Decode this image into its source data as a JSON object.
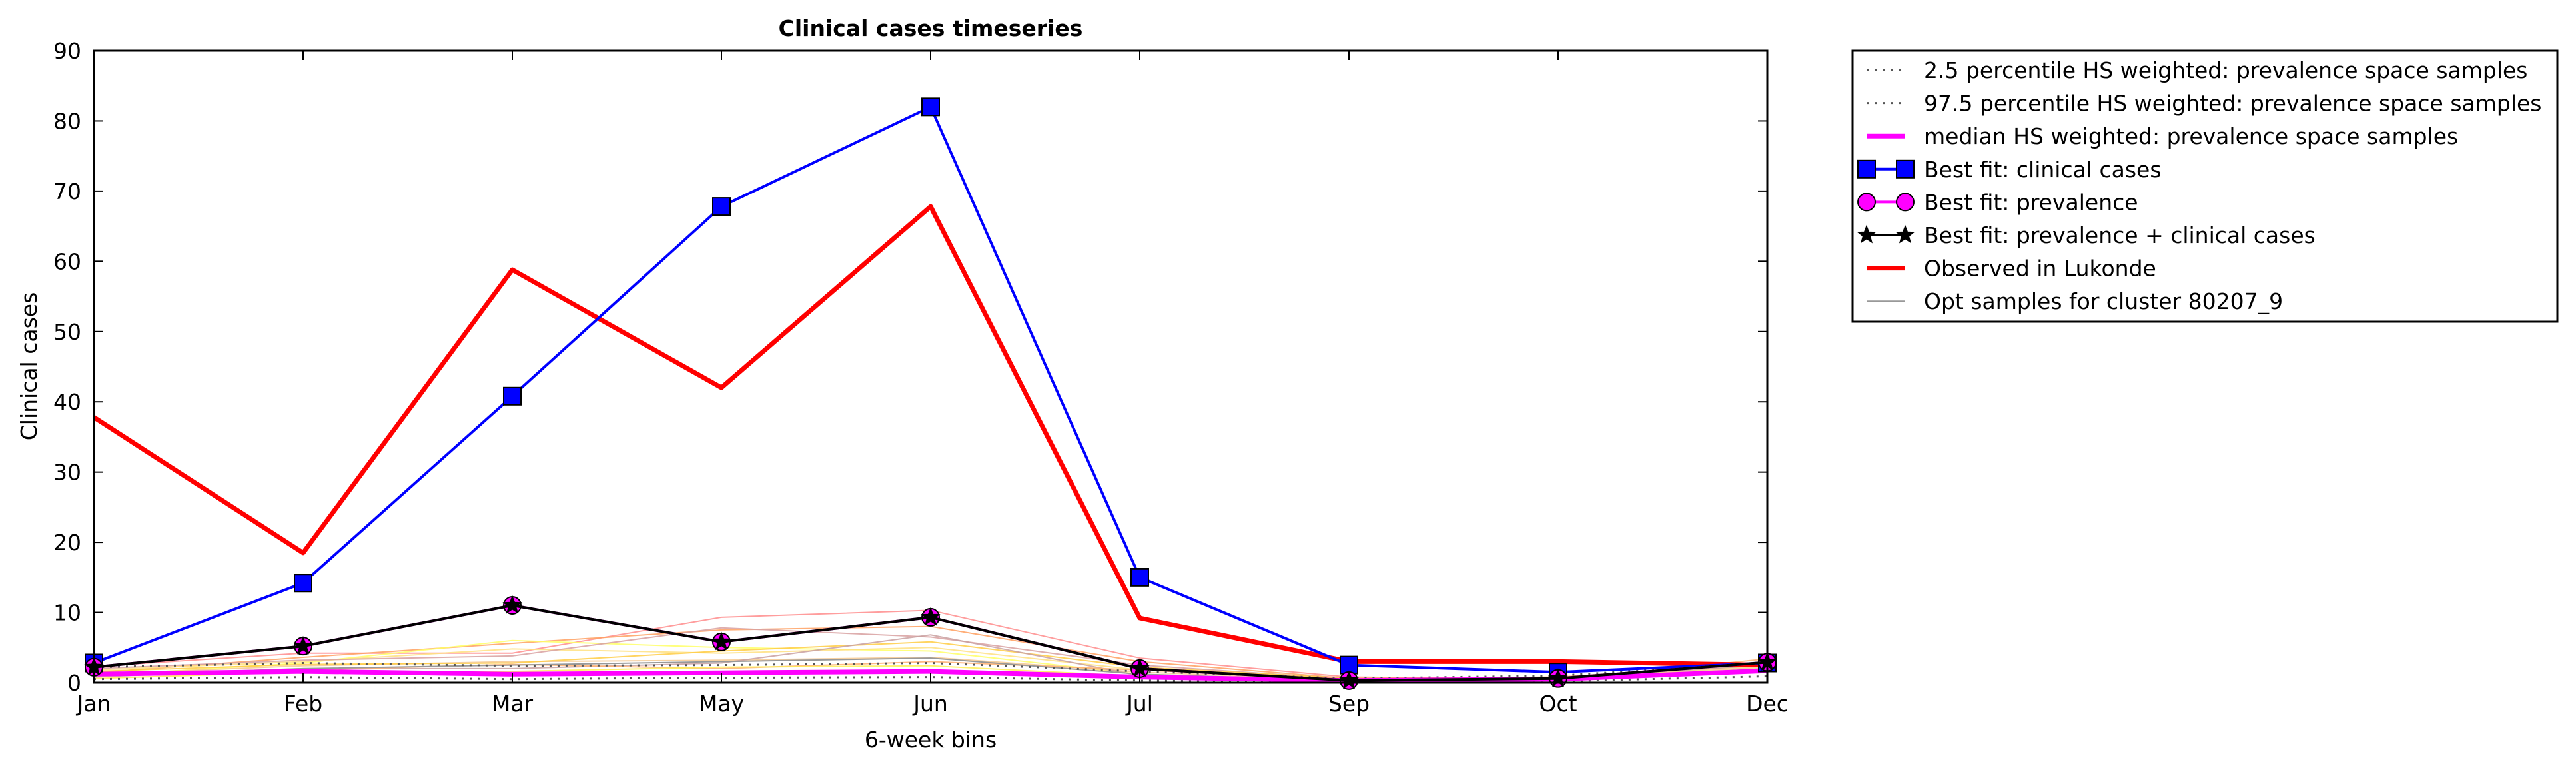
{
  "chart_data": {
    "type": "line",
    "title": "Clinical cases timeseries",
    "xlabel": "6-week bins",
    "ylabel": "Clinical cases",
    "categories": [
      "Jan",
      "Feb",
      "Mar",
      "May",
      "Jun",
      "Jul",
      "Sep",
      "Oct",
      "Dec"
    ],
    "ylim": [
      0,
      90
    ],
    "yticks": [
      0,
      10,
      20,
      30,
      40,
      50,
      60,
      70,
      80,
      90
    ],
    "grid": false,
    "legend_placement": "outside-top-right",
    "series": [
      {
        "name": "2.5 percentile HS weighted: prevalence space samples",
        "color": "#555555",
        "style": "dotted",
        "marker": "none",
        "values": [
          0.5,
          0.8,
          0.5,
          0.7,
          0.8,
          0.3,
          0.1,
          0.2,
          0.9
        ]
      },
      {
        "name": "97.5 percentile HS weighted: prevalence space samples",
        "color": "#555555",
        "style": "dotted",
        "marker": "none",
        "values": [
          2.2,
          2.8,
          2.4,
          2.5,
          2.8,
          1.6,
          0.6,
          1.0,
          2.8
        ]
      },
      {
        "name": "median HS weighted: prevalence space samples",
        "color": "#ff00ff",
        "style": "solid-thick",
        "marker": "none",
        "values": [
          1.2,
          1.6,
          1.2,
          1.4,
          1.6,
          0.8,
          0.3,
          0.5,
          1.7
        ]
      },
      {
        "name": "Best fit: clinical cases",
        "color": "#0000ff",
        "style": "solid",
        "marker": "square",
        "values": [
          2.8,
          14.2,
          40.8,
          67.8,
          82.0,
          15.0,
          2.5,
          1.5,
          2.8
        ]
      },
      {
        "name": "Best fit: prevalence",
        "color": "#ff00ff",
        "style": "solid",
        "marker": "circle",
        "values": [
          2.2,
          5.2,
          11.0,
          5.8,
          9.3,
          2.0,
          0.3,
          0.6,
          2.9
        ]
      },
      {
        "name": "Best fit: prevalence + clinical cases",
        "color": "#000000",
        "style": "solid",
        "marker": "star",
        "values": [
          2.2,
          5.2,
          11.0,
          5.8,
          9.3,
          2.0,
          0.3,
          0.6,
          2.9
        ]
      },
      {
        "name": "Observed in Lukonde",
        "color": "#ff0000",
        "style": "solid-thick",
        "marker": "none",
        "values": [
          37.8,
          18.5,
          58.8,
          42.0,
          67.8,
          9.2,
          3.0,
          3.0,
          2.5
        ]
      },
      {
        "name": "Opt samples for cluster 80207_9",
        "color": "#999999",
        "style": "thin",
        "marker": "none",
        "values": [
          1.0,
          2.0,
          2.5,
          3.0,
          3.5,
          1.2,
          0.3,
          0.4,
          2.0
        ]
      }
    ],
    "opt_sample_lines": [
      {
        "color": "#ff8c8c",
        "values": [
          2.3,
          4.2,
          4.2,
          9.3,
          10.3,
          3.5,
          0.8,
          0.5,
          1.5
        ]
      },
      {
        "color": "#ffa060",
        "values": [
          1.4,
          3.6,
          5.6,
          7.5,
          8.0,
          3.0,
          0.6,
          0.8,
          2.6
        ]
      },
      {
        "color": "#ffff66",
        "values": [
          1.0,
          2.8,
          6.0,
          5.0,
          4.5,
          1.2,
          0.3,
          0.4,
          2.0
        ]
      },
      {
        "color": "#ffe080",
        "values": [
          1.8,
          3.0,
          4.8,
          4.2,
          5.0,
          1.8,
          0.5,
          0.6,
          2.4
        ]
      },
      {
        "color": "#d8a0a0",
        "values": [
          2.0,
          3.2,
          3.8,
          7.8,
          6.5,
          2.5,
          0.5,
          0.5,
          1.8
        ]
      },
      {
        "color": "#f5c890",
        "values": [
          1.2,
          2.4,
          3.0,
          3.2,
          3.6,
          1.5,
          0.4,
          0.6,
          2.2
        ]
      },
      {
        "color": "#ffcc44",
        "values": [
          1.6,
          2.6,
          2.8,
          4.5,
          5.8,
          2.2,
          0.6,
          0.4,
          3.0
        ]
      },
      {
        "color": "#c9a0a0",
        "values": [
          0.8,
          2.0,
          2.0,
          2.8,
          6.8,
          1.0,
          0.4,
          0.7,
          2.5
        ]
      },
      {
        "color": "#ffb070",
        "values": [
          1.1,
          1.8,
          2.6,
          2.0,
          3.0,
          1.8,
          0.5,
          0.3,
          3.4
        ]
      },
      {
        "color": "#ffee55",
        "values": [
          0.6,
          1.5,
          1.6,
          2.2,
          2.4,
          0.9,
          0.2,
          0.3,
          1.6
        ]
      }
    ]
  }
}
